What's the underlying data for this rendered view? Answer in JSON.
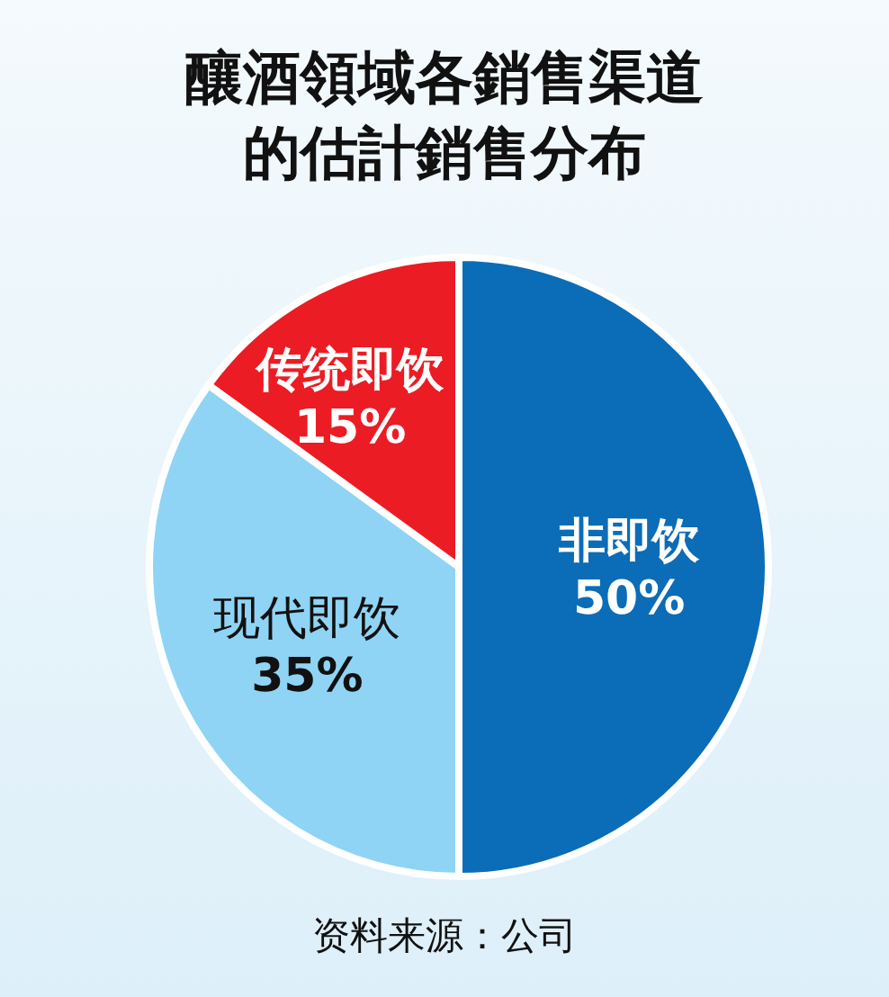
{
  "chart_data": {
    "type": "pie",
    "title": "釀酒領域各銷售渠道的估計銷售分布",
    "categories": [
      "非即饮",
      "现代即饮",
      "传统即饮"
    ],
    "values": [
      50,
      35,
      15
    ],
    "value_labels": [
      "50%",
      "35%",
      "15%"
    ],
    "colors": [
      "#0b6cb7",
      "#8fd4f4",
      "#ec1c24"
    ],
    "annotations": [
      "资料来源：公司"
    ]
  }
}
